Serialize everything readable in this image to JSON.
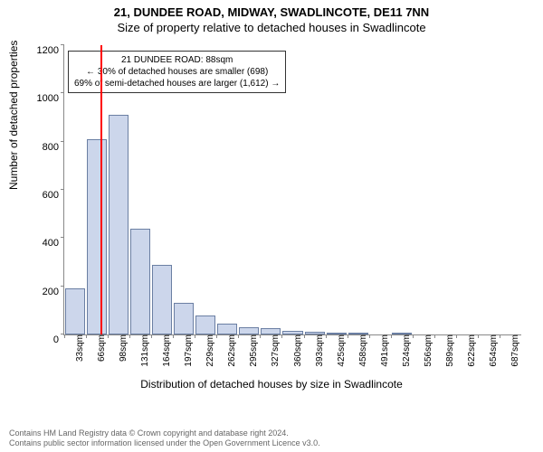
{
  "title": {
    "main": "21, DUNDEE ROAD, MIDWAY, SWADLINCOTE, DE11 7NN",
    "sub": "Size of property relative to detached houses in Swadlincote"
  },
  "chart": {
    "type": "histogram",
    "ylabel": "Number of detached properties",
    "xlabel": "Distribution of detached houses by size in Swadlincote",
    "ylim": [
      0,
      1200
    ],
    "ytick_step": 200,
    "background_color": "#ffffff",
    "bar_fill": "#ccd6eb",
    "bar_border": "#6b7fa3",
    "axis_color": "#888888",
    "marker_color": "#ff0000",
    "marker_x_value": 88,
    "x_categories": [
      "33sqm",
      "66sqm",
      "98sqm",
      "131sqm",
      "164sqm",
      "197sqm",
      "229sqm",
      "262sqm",
      "295sqm",
      "327sqm",
      "360sqm",
      "393sqm",
      "425sqm",
      "458sqm",
      "491sqm",
      "524sqm",
      "556sqm",
      "589sqm",
      "622sqm",
      "654sqm",
      "687sqm"
    ],
    "bin_start": 33,
    "bin_width_sqm": 32.7,
    "values": [
      190,
      810,
      910,
      440,
      290,
      130,
      80,
      45,
      30,
      25,
      15,
      10,
      8,
      5,
      0,
      5,
      0,
      0,
      0,
      0,
      0
    ],
    "annotation": {
      "line1": "21 DUNDEE ROAD: 88sqm",
      "line2": "← 30% of detached houses are smaller (698)",
      "line3": "69% of semi-detached houses are larger (1,612) →",
      "border_color": "#333333",
      "bg_color": "#ffffff",
      "fontsize": 10
    },
    "label_fontsize": 12,
    "tick_fontsize": 10
  },
  "footer": {
    "line1": "Contains HM Land Registry data © Crown copyright and database right 2024.",
    "line2": "Contains public sector information licensed under the Open Government Licence v3.0."
  }
}
